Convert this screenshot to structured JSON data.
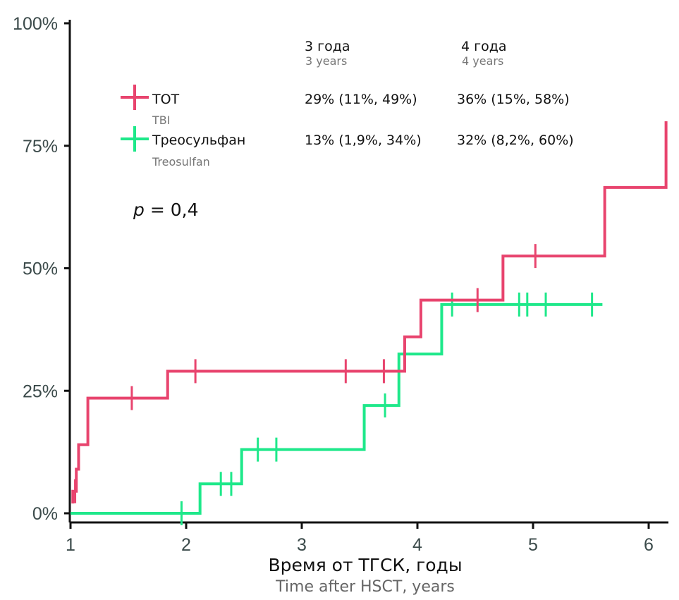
{
  "chart_data": {
    "type": "line",
    "subtype": "step (cumulative incidence, Kaplan-Meier style)",
    "xlabel": "Время от ТГСК, годы",
    "xlabel_en": "Time after HSCT, years",
    "ylabel": "",
    "xlim": [
      1,
      6.2
    ],
    "ylim": [
      0,
      100
    ],
    "x_ticks": [
      1,
      2,
      3,
      4,
      5,
      6
    ],
    "x_tick_labels": [
      "1",
      "2",
      "3",
      "4",
      "5",
      "6"
    ],
    "y_ticks": [
      0,
      25,
      50,
      75,
      100
    ],
    "y_tick_labels": [
      "0%",
      "25%",
      "50%",
      "75%",
      "100%"
    ],
    "grid": false,
    "legend_position": "top-left",
    "p_value": {
      "italic": "p",
      "text": " = 0,4"
    },
    "table_headers": [
      {
        "label": "3 года",
        "label_en": "3 years"
      },
      {
        "label": "4 года",
        "label_en": "4 years"
      }
    ],
    "series": [
      {
        "name": "ТОТ",
        "name_en": "TBI",
        "color": "#E8446E",
        "steps": [
          [
            1.02,
            4.5
          ],
          [
            1.05,
            9
          ],
          [
            1.07,
            14
          ],
          [
            1.15,
            23.5
          ],
          [
            1.84,
            29
          ],
          [
            3.89,
            36
          ],
          [
            4.03,
            43.5
          ],
          [
            4.74,
            52.5
          ],
          [
            5.62,
            66.5
          ],
          [
            6.15,
            80
          ]
        ],
        "start": [
          1.02,
          2
        ],
        "end_x": 6.15,
        "censored": [
          [
            1.04,
            4.5
          ],
          [
            1.53,
            23.5
          ],
          [
            2.08,
            29
          ],
          [
            3.38,
            29
          ],
          [
            3.71,
            29
          ],
          [
            4.52,
            43.5
          ],
          [
            5.02,
            52.5
          ]
        ],
        "estimates": [
          "29% (11%, 49%)",
          "36% (15%, 58%)"
        ]
      },
      {
        "name": "Треосульфан",
        "name_en": "Treosulfan",
        "color": "#1EE88A",
        "steps": [
          [
            2.12,
            6
          ],
          [
            2.48,
            13
          ],
          [
            3.54,
            22
          ],
          [
            3.84,
            32.5
          ],
          [
            4.21,
            42.6
          ]
        ],
        "start": [
          1.0,
          0
        ],
        "end_x": 5.6,
        "censored": [
          [
            1.96,
            0
          ],
          [
            2.3,
            6
          ],
          [
            2.39,
            6
          ],
          [
            2.62,
            13
          ],
          [
            2.78,
            13
          ],
          [
            3.72,
            22
          ],
          [
            4.3,
            42.6
          ],
          [
            4.88,
            42.6
          ],
          [
            4.95,
            42.6
          ],
          [
            5.11,
            42.6
          ],
          [
            5.51,
            42.6
          ]
        ],
        "estimates": [
          "13% (1,9%, 34%)",
          "32% (8,2%, 60%)"
        ]
      }
    ]
  }
}
